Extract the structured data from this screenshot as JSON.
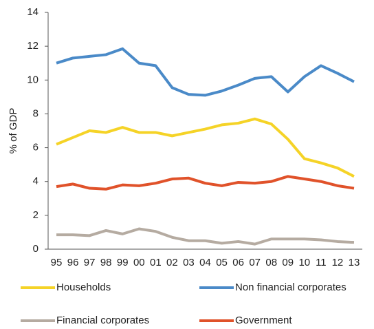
{
  "chart_data": {
    "type": "line",
    "y_label": "% of GDP",
    "categories": [
      "95",
      "96",
      "97",
      "98",
      "99",
      "00",
      "01",
      "02",
      "03",
      "04",
      "05",
      "06",
      "07",
      "08",
      "09",
      "10",
      "11",
      "12",
      "13"
    ],
    "series": [
      {
        "name": "Households",
        "color": "#f5d327",
        "values": [
          6.2,
          6.6,
          7.0,
          6.9,
          7.2,
          6.9,
          6.9,
          6.7,
          6.9,
          7.1,
          7.35,
          7.45,
          7.7,
          7.4,
          6.5,
          5.35,
          5.1,
          4.8,
          4.3
        ]
      },
      {
        "name": "Non financial corporates",
        "color": "#4a8ac8",
        "values": [
          11.0,
          11.3,
          11.4,
          11.5,
          11.85,
          11.0,
          10.85,
          9.55,
          9.15,
          9.1,
          9.35,
          9.7,
          10.1,
          10.2,
          9.3,
          10.2,
          10.85,
          10.4,
          9.9
        ]
      },
      {
        "name": "Financial corporates",
        "color": "#b5aba1",
        "values": [
          0.85,
          0.85,
          0.8,
          1.1,
          0.9,
          1.2,
          1.05,
          0.7,
          0.5,
          0.5,
          0.35,
          0.45,
          0.3,
          0.6,
          0.6,
          0.6,
          0.55,
          0.45,
          0.4
        ]
      },
      {
        "name": "Government",
        "color": "#e0522a",
        "values": [
          3.7,
          3.85,
          3.6,
          3.55,
          3.8,
          3.75,
          3.9,
          4.15,
          4.2,
          3.9,
          3.75,
          3.95,
          3.9,
          4.0,
          4.3,
          4.15,
          4.0,
          3.75,
          3.6
        ]
      }
    ],
    "ylim": [
      0,
      14
    ],
    "yticks": [
      0,
      2,
      4,
      6,
      8,
      10,
      12,
      14
    ],
    "grid": false,
    "legend": "bottom"
  }
}
